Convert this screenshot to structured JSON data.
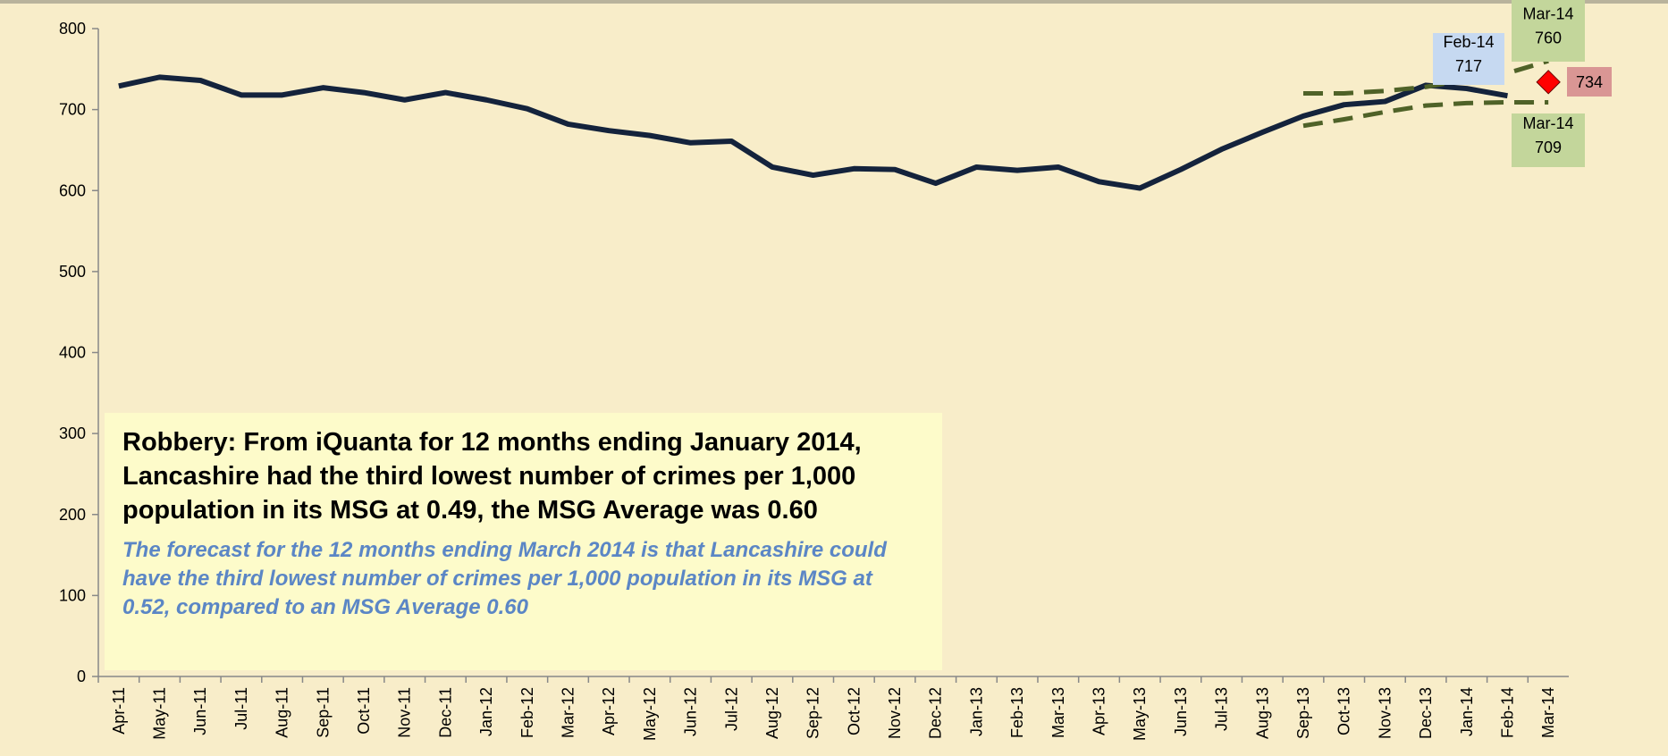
{
  "chart_data": {
    "type": "line",
    "categories": [
      "Apr-11",
      "May-11",
      "Jun-11",
      "Jul-11",
      "Aug-11",
      "Sep-11",
      "Oct-11",
      "Nov-11",
      "Dec-11",
      "Jan-12",
      "Feb-12",
      "Mar-12",
      "Apr-12",
      "May-12",
      "Jun-12",
      "Jul-12",
      "Aug-12",
      "Sep-12",
      "Oct-12",
      "Nov-12",
      "Dec-12",
      "Jan-13",
      "Feb-13",
      "Mar-13",
      "Apr-13",
      "May-13",
      "Jun-13",
      "Jul-13",
      "Aug-13",
      "Sep-13",
      "Oct-13",
      "Nov-13",
      "Dec-13",
      "Jan-14",
      "Feb-14",
      "Mar-14"
    ],
    "series": [
      {
        "color": "#14233c",
        "style": "solid",
        "values": [
          729,
          740,
          736,
          718,
          718,
          727,
          721,
          712,
          721,
          712,
          701,
          682,
          674,
          668,
          659,
          661,
          629,
          619,
          627,
          626,
          609,
          629,
          625,
          629,
          611,
          603,
          626,
          651,
          672,
          692,
          706,
          710,
          730,
          726,
          717,
          null
        ]
      },
      {
        "color": "#4f6228",
        "style": "dashed",
        "values": [
          null,
          null,
          null,
          null,
          null,
          null,
          null,
          null,
          null,
          null,
          null,
          null,
          null,
          null,
          null,
          null,
          null,
          null,
          null,
          null,
          null,
          null,
          null,
          null,
          null,
          null,
          null,
          null,
          null,
          720,
          720,
          723,
          728,
          737,
          745,
          760
        ]
      },
      {
        "color": "#4f6228",
        "style": "dashed",
        "values": [
          null,
          null,
          null,
          null,
          null,
          null,
          null,
          null,
          null,
          null,
          null,
          null,
          null,
          null,
          null,
          null,
          null,
          null,
          null,
          null,
          null,
          null,
          null,
          null,
          null,
          null,
          null,
          null,
          null,
          680,
          688,
          697,
          705,
          708,
          709,
          709
        ]
      }
    ],
    "forecast_point": {
      "category": "Mar-14",
      "value": 734,
      "color": "#ff0000",
      "label": "734"
    },
    "annotations": [
      {
        "lines": [
          "Feb-14",
          "717"
        ],
        "color": "#c6d9f1"
      },
      {
        "lines": [
          "Mar-14",
          "760"
        ],
        "color": "#c3d69b"
      },
      {
        "lines": [
          "Mar-14",
          "709"
        ],
        "color": "#c3d69b"
      }
    ],
    "ylim": [
      0,
      800
    ],
    "yticks": [
      0,
      100,
      200,
      300,
      400,
      500,
      600,
      700,
      800
    ],
    "text_box": {
      "title": "Robbery: From iQuanta for 12 months ending January 2014, Lancashire had the third lowest number of crimes per 1,000 population in its MSG at 0.49, the MSG Average was 0.60",
      "subtitle": "The forecast for the 12 months ending March 2014 is that Lancashire could have the third lowest number of crimes per 1,000 population in its MSG at 0.52, compared to an MSG Average 0.60"
    }
  }
}
